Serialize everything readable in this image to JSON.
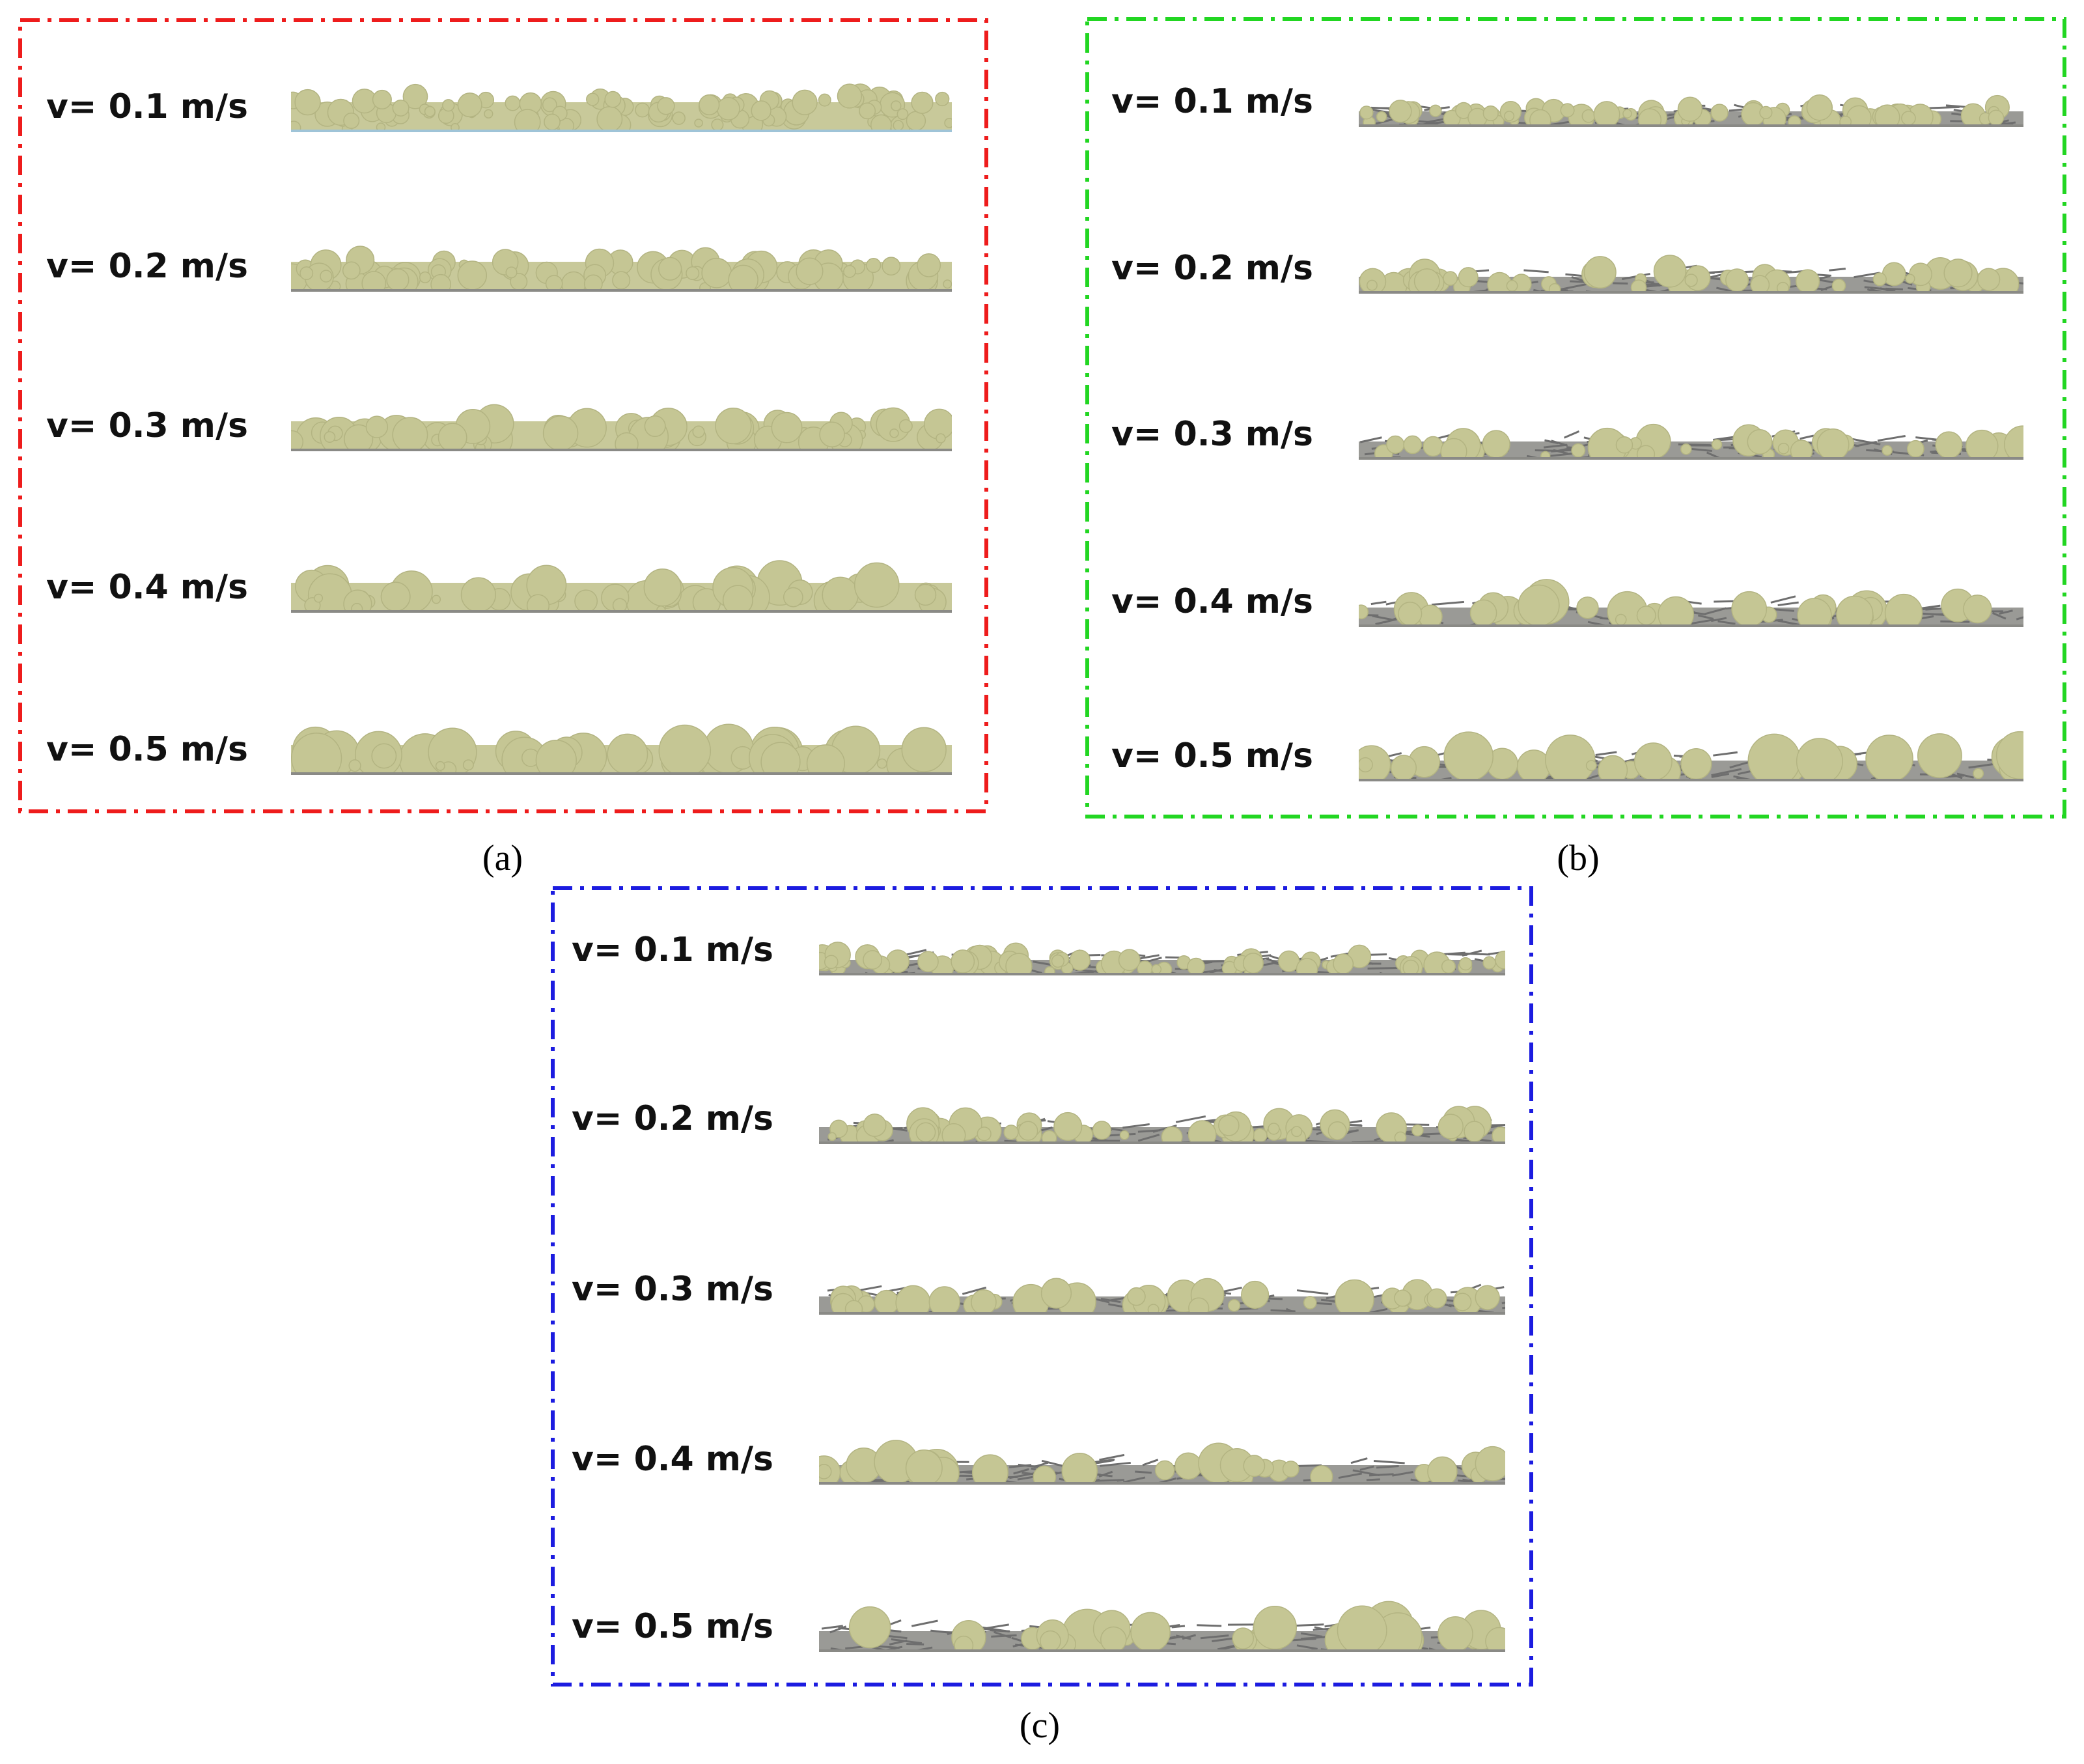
{
  "panels": [
    {
      "label": "(a)",
      "rows": [
        "v= 0.1 m/s",
        "v= 0.2 m/s",
        "v= 0.3 m/s",
        "v= 0.4 m/s",
        "v= 0.5 m/s"
      ]
    },
    {
      "label": "(b)",
      "rows": [
        "v= 0.1 m/s",
        "v= 0.2 m/s",
        "v= 0.3 m/s",
        "v= 0.4 m/s",
        "v= 0.5 m/s"
      ]
    },
    {
      "label": "(c)",
      "rows": [
        "v= 0.1 m/s",
        "v= 0.2 m/s",
        "v= 0.3 m/s",
        "v= 0.4 m/s",
        "v= 0.5 m/s"
      ]
    }
  ]
}
